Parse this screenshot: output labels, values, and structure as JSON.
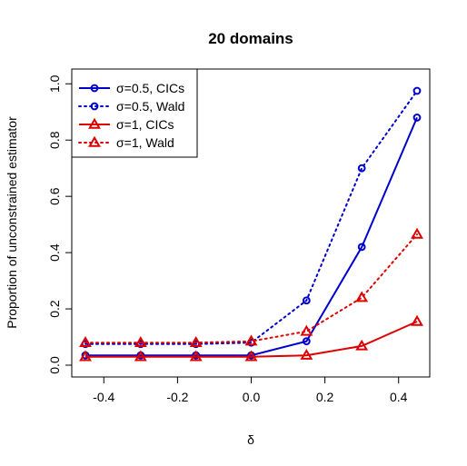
{
  "chart_data": {
    "type": "line",
    "title": "20 domains",
    "xlabel": "δ",
    "ylabel": "Proportion of unconstrained estimator",
    "x": [
      -0.45,
      -0.3,
      -0.15,
      0.0,
      0.15,
      0.3,
      0.45
    ],
    "xlim": [
      -0.45,
      0.45
    ],
    "ylim": [
      0.0,
      0.975
    ],
    "xticks": [
      -0.4,
      -0.2,
      0.0,
      0.2,
      0.4
    ],
    "xtick_labels": [
      "-0.4",
      "-0.2",
      "0.0",
      "0.2",
      "0.4"
    ],
    "yticks": [
      0.0,
      0.2,
      0.4,
      0.6,
      0.8,
      1.0
    ],
    "ytick_labels": [
      "0.0",
      "0.2",
      "0.4",
      "0.6",
      "0.8",
      "1.0"
    ],
    "grid": false,
    "legend_position": "top-left",
    "series": [
      {
        "name": "σ=0.5, CICs",
        "color": "#0000CD",
        "line": "solid",
        "marker": "circle",
        "values": [
          0.035,
          0.035,
          0.035,
          0.035,
          0.085,
          0.42,
          0.88
        ]
      },
      {
        "name": "σ=0.5, Wald",
        "color": "#0000CD",
        "line": "dotted",
        "marker": "circle",
        "values": [
          0.075,
          0.075,
          0.075,
          0.08,
          0.23,
          0.7,
          0.975
        ]
      },
      {
        "name": "σ=1, CICs",
        "color": "#DD0000",
        "line": "solid",
        "marker": "triangle",
        "values": [
          0.03,
          0.03,
          0.03,
          0.03,
          0.035,
          0.068,
          0.155
        ]
      },
      {
        "name": "σ=1, Wald",
        "color": "#DD0000",
        "line": "dotted",
        "marker": "triangle",
        "values": [
          0.08,
          0.08,
          0.08,
          0.085,
          0.12,
          0.24,
          0.465
        ]
      }
    ]
  }
}
